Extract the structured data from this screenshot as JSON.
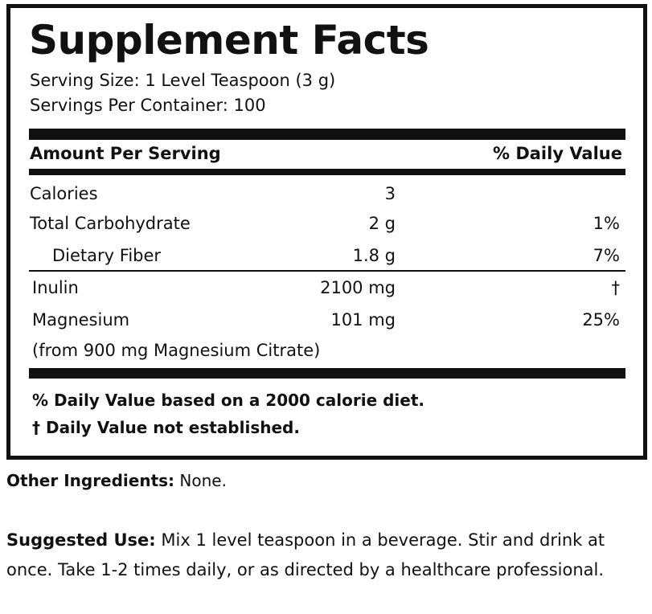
{
  "label": {
    "title": "Supplement Facts",
    "serving_size": "Serving Size: 1 Level Teaspoon (3 g)",
    "servings_per_container": "Servings Per Container: 100",
    "header": {
      "amount": "Amount Per Serving",
      "daily_value": "% Daily Value"
    },
    "rows": [
      {
        "name": "Calories",
        "amount": "3"
      },
      {
        "name": "Total Carbohydrate",
        "amount": "2 g",
        "daily_value": "1%"
      },
      {
        "name": "Dietary Fiber",
        "amount": "1.8 g",
        "daily_value": "7%"
      },
      {
        "name": "Inulin",
        "amount": "2100 mg",
        "daily_value": "†"
      },
      {
        "name": "Magnesium",
        "amount": "101 mg",
        "daily_value": "25%"
      }
    ],
    "magnesium_note": "(from 900 mg Magnesium Citrate)",
    "footnotes": [
      "% Daily Value based on a 2000 calorie diet.",
      "† Daily Value not established."
    ]
  },
  "other_ingredients": {
    "label": "Other Ingredients:",
    "text": "None."
  },
  "suggested_use": {
    "label": "Suggested Use:",
    "text": "Mix 1 level teaspoon in a beverage. Stir and drink at once. Take 1-2 times daily, or as directed by a healthcare professional."
  }
}
